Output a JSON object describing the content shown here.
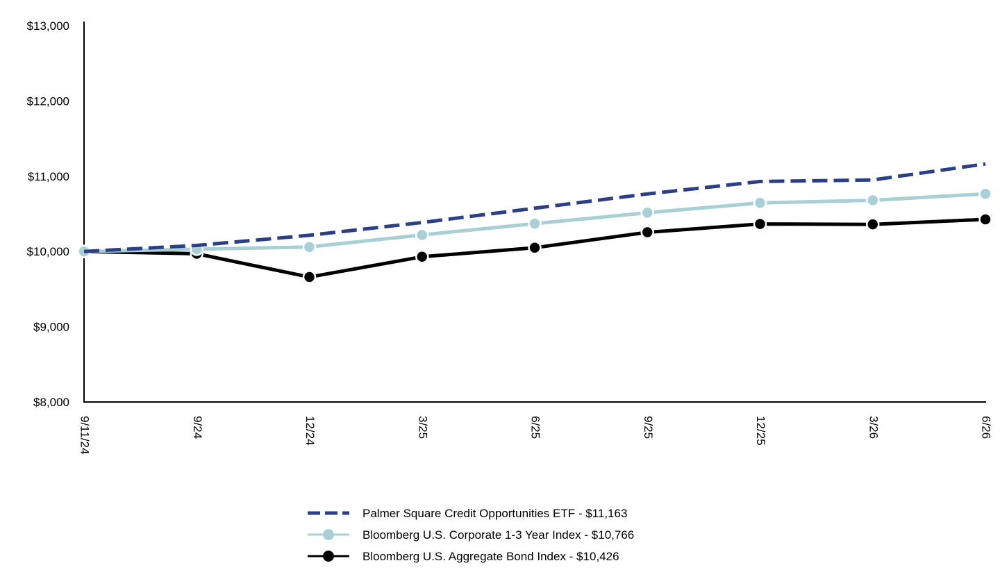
{
  "chart_data": {
    "type": "line",
    "categories": [
      "9/11/24",
      "9/24",
      "12/24",
      "3/25",
      "6/25",
      "9/25",
      "12/25",
      "3/26",
      "6/26"
    ],
    "y_tick_labels": [
      "$8,000",
      "$9,000",
      "$10,000",
      "$11,000",
      "$12,000",
      "$13,000"
    ],
    "y_ticks": [
      8000,
      9000,
      10000,
      11000,
      12000,
      13000
    ],
    "ylim": [
      8000,
      13000
    ],
    "grid": false,
    "legend_position": "bottom-center",
    "series": [
      {
        "name": "Palmer Square Credit Opportunities ETF - $11,163",
        "values": [
          10000,
          10080,
          10215,
          10385,
          10575,
          10765,
          10930,
          10950,
          11163
        ],
        "color": "#2b3f86",
        "style": "dashed",
        "markers": false
      },
      {
        "name": "Bloomberg U.S. Corporate 1-3 Year Index - $10,766",
        "values": [
          10000,
          10030,
          10060,
          10220,
          10370,
          10515,
          10645,
          10680,
          10766
        ],
        "color": "#a8cfd6",
        "style": "solid",
        "markers": true
      },
      {
        "name": "Bloomberg U.S. Aggregate Bond Index - $10,426",
        "values": [
          10000,
          9970,
          9660,
          9930,
          10050,
          10255,
          10365,
          10360,
          10426
        ],
        "color": "#000000",
        "style": "solid",
        "markers": true
      }
    ]
  }
}
